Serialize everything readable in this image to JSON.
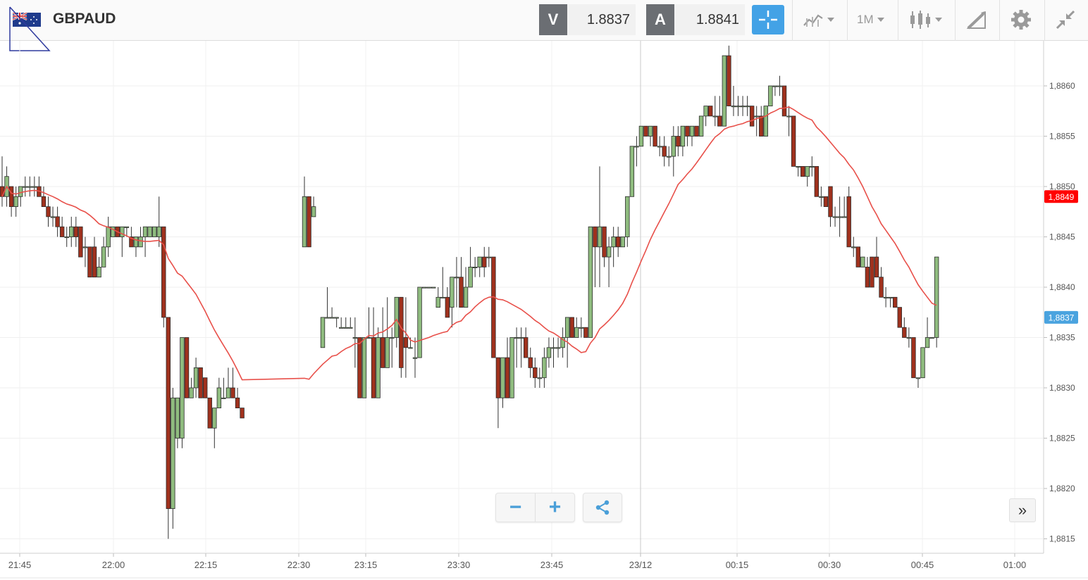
{
  "header": {
    "symbol": "GBPAUD",
    "flag_icon": "gb-au-flag-icon",
    "sell": {
      "letter": "V",
      "price": "1.8837"
    },
    "buy": {
      "letter": "A",
      "price": "1.8841"
    },
    "timeframe": "1M",
    "icons": [
      "crosshair-icon",
      "indicator-icon",
      "timeframe-dropdown",
      "candlestick-icon",
      "drawing-icon",
      "gear-icon",
      "collapse-icon"
    ],
    "accent": "#43a2e6"
  },
  "controls": {
    "zoom_out": "−",
    "zoom_in": "+",
    "share_icon": "share-icon",
    "scroll_right": "»"
  },
  "chart_data": {
    "type": "candlestick",
    "series": [
      {
        "name": "GBPAUD",
        "kind": "candles",
        "up_color": "#8fbc7f",
        "down_color": "#a0311d"
      },
      {
        "kind": "moving-average",
        "color": "#e8504a"
      }
    ],
    "ylim": [
      1.8814,
      1.8864
    ],
    "y_ticks": [
      "1,8815",
      "1,8820",
      "1,8825",
      "1,8830",
      "1,8835",
      "1,8840",
      "1,8845",
      "1,8850",
      "1,8855",
      "1,8860"
    ],
    "x_ticks": [
      "21:45",
      "22:00",
      "22:15",
      "22:30",
      "23:15",
      "23:30",
      "23:45",
      "23/12",
      "00:15",
      "00:30",
      "00:45",
      "01:00"
    ],
    "price_markers": [
      {
        "label": "1,8849",
        "value": 1.8849,
        "color": "#ff0000"
      },
      {
        "label": "1,8837",
        "value": 1.8837,
        "color": "#4aa3df"
      }
    ],
    "grid": true,
    "candles": [
      [
        1.885,
        1.8853,
        1.8848,
        1.8849
      ],
      [
        1.8849,
        1.8852,
        1.8848,
        1.8851
      ],
      [
        1.885,
        1.885,
        1.8847,
        1.8848
      ],
      [
        1.8848,
        1.885,
        1.8847,
        1.8849
      ],
      [
        1.8849,
        1.885,
        1.8848,
        1.885
      ],
      [
        1.885,
        1.8851,
        1.8849,
        1.885
      ],
      [
        1.885,
        1.8851,
        1.8849,
        1.885
      ],
      [
        1.885,
        1.8851,
        1.8849,
        1.885
      ],
      [
        1.885,
        1.8851,
        1.8849,
        1.8849
      ],
      [
        1.8849,
        1.885,
        1.8848,
        1.8848
      ],
      [
        1.8848,
        1.8849,
        1.8846,
        1.8847
      ],
      [
        1.8847,
        1.8848,
        1.8846,
        1.8847
      ],
      [
        1.8847,
        1.8848,
        1.8845,
        1.8846
      ],
      [
        1.8846,
        1.8847,
        1.8845,
        1.8845
      ],
      [
        1.8845,
        1.8846,
        1.8844,
        1.8845
      ],
      [
        1.8845,
        1.8847,
        1.8844,
        1.8846
      ],
      [
        1.8846,
        1.8847,
        1.8844,
        1.8845
      ],
      [
        1.8846,
        1.8846,
        1.8843,
        1.8843
      ],
      [
        1.8844,
        1.8845,
        1.8842,
        1.8844
      ],
      [
        1.8844,
        1.8844,
        1.8841,
        1.8841
      ],
      [
        1.8844,
        1.8845,
        1.8841,
        1.8841
      ],
      [
        1.8841,
        1.8843,
        1.8841,
        1.8842
      ],
      [
        1.8842,
        1.8845,
        1.8842,
        1.8844
      ],
      [
        1.8844,
        1.8847,
        1.8843,
        1.8846
      ],
      [
        1.8845,
        1.8846,
        1.8845,
        1.8846
      ],
      [
        1.8846,
        1.8846,
        1.8845,
        1.8845
      ],
      [
        1.8845,
        1.8846,
        1.8843,
        1.8846
      ],
      [
        1.8846,
        1.8846,
        1.8845,
        1.8846
      ],
      [
        1.8845,
        1.8846,
        1.8844,
        1.8844
      ],
      [
        1.8844,
        1.8845,
        1.8843,
        1.8845
      ],
      [
        1.8844,
        1.8846,
        1.8844,
        1.8845
      ],
      [
        1.8845,
        1.8846,
        1.8843,
        1.8846
      ],
      [
        1.8845,
        1.8846,
        1.8845,
        1.8846
      ],
      [
        1.8845,
        1.8846,
        1.8845,
        1.8846
      ],
      [
        1.8845,
        1.8849,
        1.8844,
        1.8846
      ],
      [
        1.8846,
        1.8846,
        1.8836,
        1.8837
      ],
      [
        1.8837,
        1.8837,
        1.8815,
        1.8818
      ],
      [
        1.8818,
        1.883,
        1.8816,
        1.8829
      ],
      [
        1.8825,
        1.8829,
        1.8824,
        1.8829
      ],
      [
        1.8825,
        1.8835,
        1.8824,
        1.8835
      ],
      [
        1.8835,
        1.8835,
        1.8829,
        1.8829
      ],
      [
        1.8829,
        1.8831,
        1.8829,
        1.883
      ],
      [
        1.883,
        1.8833,
        1.8829,
        1.8832
      ],
      [
        1.8832,
        1.8832,
        1.8829,
        1.8829
      ],
      [
        1.8831,
        1.8831,
        1.8829,
        1.8829
      ],
      [
        1.8829,
        1.8829,
        1.8826,
        1.8826
      ],
      [
        1.8826,
        1.8828,
        1.8824,
        1.8828
      ],
      [
        1.8828,
        1.8831,
        1.8828,
        1.883
      ],
      [
        1.8829,
        1.8831,
        1.8829,
        1.8829
      ],
      [
        1.8829,
        1.8832,
        1.8829,
        1.883
      ],
      [
        1.883,
        1.8832,
        1.8829,
        1.8829
      ],
      [
        1.8829,
        1.883,
        1.8828,
        1.8828
      ],
      [
        1.8828,
        1.8828,
        1.8827,
        1.8827
      ],
      [
        1.8844,
        1.8851,
        1.8844,
        1.8849
      ],
      [
        1.8849,
        1.8849,
        1.8844,
        1.8844
      ],
      [
        1.8847,
        1.8849,
        1.8847,
        1.8848
      ],
      [
        1.8834,
        1.8837,
        1.8834,
        1.8837
      ],
      [
        1.8837,
        1.884,
        1.8837,
        1.8837
      ],
      [
        1.8837,
        1.8838,
        1.8837,
        1.8837
      ],
      [
        1.8837,
        1.8837,
        1.8836,
        1.8837
      ],
      [
        1.8836,
        1.8837,
        1.8836,
        1.8836
      ],
      [
        1.8836,
        1.8837,
        1.8836,
        1.8836
      ],
      [
        1.8836,
        1.8837,
        1.8836,
        1.8836
      ],
      [
        1.8835,
        1.8837,
        1.8832,
        1.8835
      ],
      [
        1.8835,
        1.8835,
        1.8829,
        1.8829
      ],
      [
        1.8829,
        1.8835,
        1.8829,
        1.8835
      ],
      [
        1.8835,
        1.8838,
        1.8835,
        1.8835
      ],
      [
        1.8835,
        1.8838,
        1.8829,
        1.8829
      ],
      [
        1.8829,
        1.8836,
        1.8829,
        1.8835
      ],
      [
        1.8835,
        1.8838,
        1.8832,
        1.8832
      ],
      [
        1.8832,
        1.8839,
        1.8832,
        1.8835
      ],
      [
        1.8835,
        1.8836,
        1.8832,
        1.8835
      ],
      [
        1.8835,
        1.8839,
        1.8834,
        1.8839
      ],
      [
        1.8839,
        1.8839,
        1.8831,
        1.8832
      ],
      [
        1.8835,
        1.8839,
        1.8831,
        1.8834
      ],
      [
        1.8834,
        1.8835,
        1.8834,
        1.8834
      ],
      [
        1.8833,
        1.8835,
        1.8831,
        1.8833
      ],
      [
        1.8833,
        1.884,
        1.8833,
        1.884
      ],
      [
        1.884,
        1.884,
        1.884,
        1.884
      ],
      [
        1.884,
        1.884,
        1.884,
        1.884
      ],
      [
        1.884,
        1.884,
        1.884,
        1.884
      ],
      [
        1.8838,
        1.884,
        1.8838,
        1.8839
      ],
      [
        1.8839,
        1.8842,
        1.8839,
        1.8839
      ],
      [
        1.8839,
        1.884,
        1.8837,
        1.8837
      ],
      [
        1.8838,
        1.8841,
        1.8836,
        1.8841
      ],
      [
        1.8841,
        1.8843,
        1.8838,
        1.8841
      ],
      [
        1.8841,
        1.8843,
        1.8838,
        1.8838
      ],
      [
        1.8838,
        1.8842,
        1.8838,
        1.884
      ],
      [
        1.884,
        1.8844,
        1.884,
        1.8842
      ],
      [
        1.8842,
        1.8843,
        1.8841,
        1.8842
      ],
      [
        1.8842,
        1.8843,
        1.8841,
        1.8843
      ],
      [
        1.8843,
        1.8844,
        1.8841,
        1.8842
      ],
      [
        1.8843,
        1.8844,
        1.8842,
        1.8843
      ],
      [
        1.8843,
        1.8843,
        1.8833,
        1.8833
      ],
      [
        1.8833,
        1.8833,
        1.8826,
        1.8829
      ],
      [
        1.8829,
        1.8833,
        1.8828,
        1.8833
      ],
      [
        1.8833,
        1.8835,
        1.8829,
        1.8829
      ],
      [
        1.8829,
        1.8835,
        1.8829,
        1.8835
      ],
      [
        1.8835,
        1.8836,
        1.8832,
        1.8835
      ],
      [
        1.8835,
        1.8836,
        1.8832,
        1.8835
      ],
      [
        1.8835,
        1.8836,
        1.8833,
        1.8833
      ],
      [
        1.8833,
        1.8834,
        1.8831,
        1.8832
      ],
      [
        1.8832,
        1.8833,
        1.883,
        1.8831
      ],
      [
        1.8831,
        1.8832,
        1.883,
        1.8831
      ],
      [
        1.8831,
        1.8834,
        1.883,
        1.8833
      ],
      [
        1.8833,
        1.8835,
        1.8832,
        1.8834
      ],
      [
        1.8834,
        1.8835,
        1.8832,
        1.8834
      ],
      [
        1.8834,
        1.8835,
        1.8833,
        1.8834
      ],
      [
        1.8834,
        1.8836,
        1.8833,
        1.8835
      ],
      [
        1.8835,
        1.8837,
        1.8832,
        1.8837
      ],
      [
        1.8837,
        1.8837,
        1.8835,
        1.8835
      ],
      [
        1.8835,
        1.8837,
        1.8835,
        1.8836
      ],
      [
        1.8836,
        1.8837,
        1.8835,
        1.8836
      ],
      [
        1.8836,
        1.8836,
        1.8835,
        1.8835
      ],
      [
        1.8835,
        1.8846,
        1.8835,
        1.8846
      ],
      [
        1.8846,
        1.8846,
        1.884,
        1.8844
      ],
      [
        1.8844,
        1.8852,
        1.884,
        1.8846
      ],
      [
        1.8846,
        1.8846,
        1.8842,
        1.8843
      ],
      [
        1.8843,
        1.8845,
        1.884,
        1.8844
      ],
      [
        1.8844,
        1.8846,
        1.8842,
        1.8845
      ],
      [
        1.8845,
        1.8846,
        1.8843,
        1.8844
      ],
      [
        1.8844,
        1.8845,
        1.8844,
        1.8845
      ],
      [
        1.8845,
        1.8849,
        1.8844,
        1.8849
      ],
      [
        1.8849,
        1.8854,
        1.8849,
        1.8854
      ],
      [
        1.8854,
        1.8855,
        1.8852,
        1.8854
      ],
      [
        1.8854,
        1.8856,
        1.8854,
        1.8856
      ],
      [
        1.8856,
        1.8856,
        1.8855,
        1.8855
      ],
      [
        1.8855,
        1.8856,
        1.8854,
        1.8856
      ],
      [
        1.8856,
        1.8856,
        1.8854,
        1.8854
      ],
      [
        1.8854,
        1.8855,
        1.8853,
        1.8854
      ],
      [
        1.8854,
        1.8855,
        1.8852,
        1.8853
      ],
      [
        1.8853,
        1.8854,
        1.8852,
        1.8853
      ],
      [
        1.8853,
        1.8856,
        1.8851,
        1.8855
      ],
      [
        1.8855,
        1.8856,
        1.8853,
        1.8854
      ],
      [
        1.8854,
        1.8856,
        1.8853,
        1.8856
      ],
      [
        1.8856,
        1.8856,
        1.8854,
        1.8855
      ],
      [
        1.8855,
        1.8856,
        1.8854,
        1.8856
      ],
      [
        1.8856,
        1.8856,
        1.8855,
        1.8855
      ],
      [
        1.8855,
        1.8857,
        1.8855,
        1.8857
      ],
      [
        1.8857,
        1.8858,
        1.8856,
        1.8858
      ],
      [
        1.8858,
        1.8858,
        1.8857,
        1.8857
      ],
      [
        1.8857,
        1.8859,
        1.8856,
        1.8857
      ],
      [
        1.8857,
        1.8859,
        1.8856,
        1.8856
      ],
      [
        1.8856,
        1.8863,
        1.8856,
        1.8863
      ],
      [
        1.8863,
        1.8864,
        1.8858,
        1.8858
      ],
      [
        1.8858,
        1.886,
        1.8857,
        1.8858
      ],
      [
        1.8858,
        1.8859,
        1.8857,
        1.8858
      ],
      [
        1.8858,
        1.8859,
        1.8857,
        1.8858
      ],
      [
        1.8858,
        1.8859,
        1.8857,
        1.8858
      ],
      [
        1.8858,
        1.8858,
        1.8856,
        1.8856
      ],
      [
        1.8857,
        1.8858,
        1.8855,
        1.8857
      ],
      [
        1.8857,
        1.8858,
        1.8855,
        1.8855
      ],
      [
        1.8855,
        1.8858,
        1.8855,
        1.8858
      ],
      [
        1.8858,
        1.886,
        1.8858,
        1.886
      ],
      [
        1.886,
        1.886,
        1.8859,
        1.886
      ],
      [
        1.886,
        1.8861,
        1.8859,
        1.886
      ],
      [
        1.886,
        1.886,
        1.8857,
        1.8857
      ],
      [
        1.8857,
        1.8858,
        1.8855,
        1.8857
      ],
      [
        1.8857,
        1.8857,
        1.8852,
        1.8852
      ],
      [
        1.8852,
        1.8852,
        1.8851,
        1.8852
      ],
      [
        1.8852,
        1.8852,
        1.8851,
        1.8851
      ],
      [
        1.8851,
        1.8852,
        1.885,
        1.8852
      ],
      [
        1.8852,
        1.8853,
        1.8851,
        1.8852
      ],
      [
        1.8852,
        1.8852,
        1.8849,
        1.8849
      ],
      [
        1.8849,
        1.885,
        1.8848,
        1.8849
      ],
      [
        1.8849,
        1.8849,
        1.8848,
        1.8848
      ],
      [
        1.885,
        1.885,
        1.8846,
        1.8847
      ],
      [
        1.8847,
        1.8848,
        1.8846,
        1.8847
      ],
      [
        1.8847,
        1.8849,
        1.8845,
        1.8847
      ],
      [
        1.8847,
        1.8849,
        1.8847,
        1.8847
      ],
      [
        1.8849,
        1.885,
        1.8844,
        1.8844
      ],
      [
        1.8844,
        1.8845,
        1.8843,
        1.8844
      ],
      [
        1.8844,
        1.8844,
        1.8842,
        1.8842
      ],
      [
        1.8842,
        1.8843,
        1.8842,
        1.8843
      ],
      [
        1.8842,
        1.8843,
        1.884,
        1.884
      ],
      [
        1.8843,
        1.8843,
        1.884,
        1.884
      ],
      [
        1.8843,
        1.8845,
        1.8841,
        1.8841
      ],
      [
        1.8841,
        1.8842,
        1.8839,
        1.8839
      ],
      [
        1.8839,
        1.884,
        1.8838,
        1.8839
      ],
      [
        1.8839,
        1.8839,
        1.8838,
        1.8839
      ],
      [
        1.8839,
        1.8839,
        1.8838,
        1.8838
      ],
      [
        1.8838,
        1.8838,
        1.8836,
        1.8836
      ],
      [
        1.8836,
        1.8837,
        1.8835,
        1.8835
      ],
      [
        1.8835,
        1.8836,
        1.8834,
        1.8835
      ],
      [
        1.8835,
        1.8835,
        1.8831,
        1.8831
      ],
      [
        1.8831,
        1.8831,
        1.883,
        1.8831
      ],
      [
        1.8831,
        1.8834,
        1.8831,
        1.8834
      ],
      [
        1.8834,
        1.8837,
        1.8834,
        1.8835
      ],
      [
        1.8835,
        1.8835,
        1.8835,
        1.8835
      ],
      [
        1.8835,
        1.8843,
        1.8834,
        1.8843
      ]
    ]
  }
}
